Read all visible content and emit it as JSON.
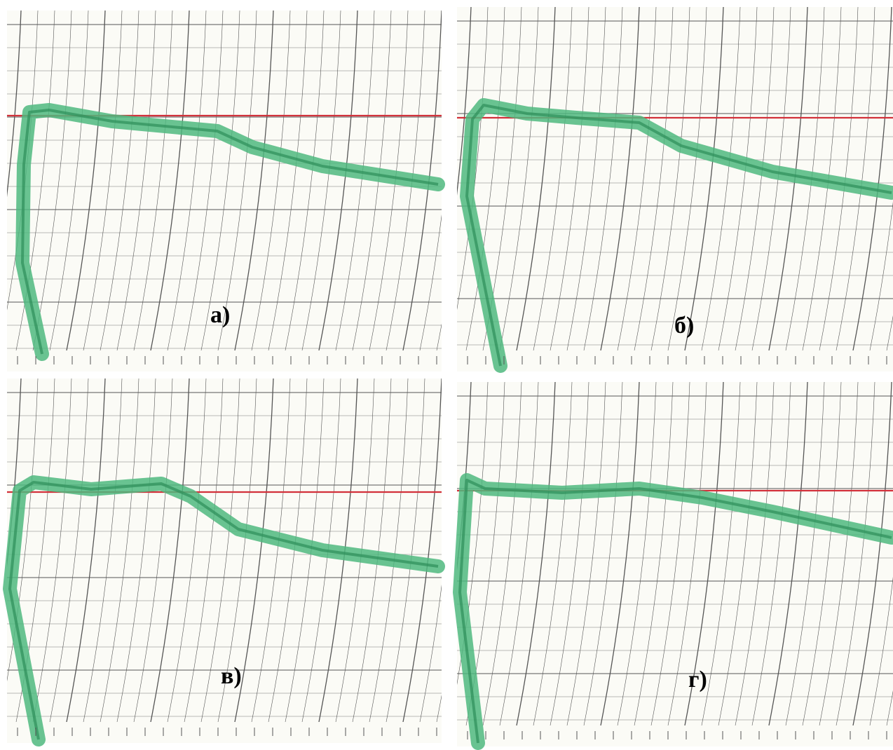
{
  "panels": [
    {
      "label": "а)"
    },
    {
      "label": "б)"
    },
    {
      "label": "в)"
    },
    {
      "label": "г)"
    }
  ]
}
